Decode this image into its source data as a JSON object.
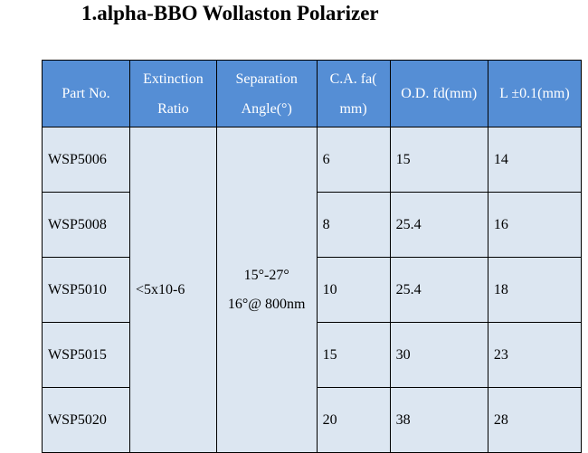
{
  "title": "1.alpha-BBO Wollaston Polarizer",
  "headers": [
    [
      "Part No."
    ],
    [
      "Extinction",
      "Ratio"
    ],
    [
      "Separation",
      "Angle(°)"
    ],
    [
      "C.A. fa(",
      "mm)"
    ],
    [
      "O.D. fd(mm)"
    ],
    [
      "L ±0.1(mm)"
    ]
  ],
  "extinction": "<5x10-6",
  "separation": [
    "15°-27°",
    "16°@ 800nm"
  ],
  "rows": [
    [
      "WSP5006",
      "6",
      "15",
      "14"
    ],
    [
      "WSP5008",
      "8",
      "25.4",
      "16"
    ],
    [
      "WSP5010",
      "10",
      "25.4",
      "18"
    ],
    [
      "WSP5015",
      "15",
      "30",
      "23"
    ],
    [
      "WSP5020",
      "20",
      "38",
      "28"
    ]
  ]
}
